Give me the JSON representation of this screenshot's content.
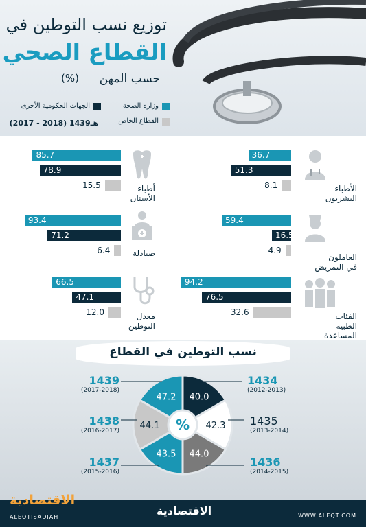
{
  "header": {
    "title_line1": "توزيع نسب التوطين في",
    "title_line2": "القطاع الصحي",
    "subtitle": "حسب المهن",
    "unit": "(%)",
    "year_range": "(2017 - 2018) 1439هـ",
    "colors": {
      "health": "#1a96b4",
      "gov": "#0c2a3b",
      "private": "#c8c8c8"
    }
  },
  "legend": {
    "health": "وزارة الصحة",
    "gov": "الجهات الحكومية الأخرى",
    "private": "القطاع الخاص"
  },
  "chart_data": [
    {
      "type": "bar",
      "orientation": "horizontal",
      "categories": [
        "الأطباء البشريون",
        "العاملون في التمريض",
        "الفئات الطبية المساعدة",
        "أطباء الأسنان",
        "صيادلة",
        "معدل التوطين"
      ],
      "series": [
        {
          "name": "وزارة الصحة",
          "values": [
            36.7,
            59.4,
            94.2,
            85.7,
            93.4,
            66.5
          ]
        },
        {
          "name": "الجهات الحكومية الأخرى",
          "values": [
            51.3,
            16.5,
            76.5,
            78.9,
            71.2,
            47.1
          ]
        },
        {
          "name": "القطاع الخاص",
          "values": [
            8.1,
            4.9,
            32.6,
            15.5,
            6.4,
            12.0
          ]
        }
      ],
      "xlim": [
        0,
        100
      ]
    },
    {
      "type": "pie",
      "title": "نسب التوطين في القطاع",
      "center_label": "%",
      "slices": [
        {
          "year": "1434",
          "gregorian": "(2012-2013)",
          "value": 40.0,
          "label": "40.0",
          "color": "#0c2a3b"
        },
        {
          "year": "1435",
          "gregorian": "(2013-2014)",
          "value": 42.3,
          "label": "42.3",
          "color": "#ffffff"
        },
        {
          "year": "1436",
          "gregorian": "(2014-2015)",
          "value": 44.0,
          "label": "44.0",
          "color": "#7a7a7a"
        },
        {
          "year": "1437",
          "gregorian": "(2015-2016)",
          "value": 43.5,
          "label": "43.5",
          "color": "#1a96b4"
        },
        {
          "year": "1438",
          "gregorian": "(2016-2017)",
          "value": 44.1,
          "label": "44.1",
          "color": "#c8c8c8"
        },
        {
          "year": "1439",
          "gregorian": "(2017-2018)",
          "value": 47.2,
          "label": "47.2",
          "color": "#1a96b4"
        }
      ]
    }
  ],
  "footer": {
    "logo": "الاقتصادية",
    "logo_sub": "ALEQTISADIAH",
    "url": "WWW.ALEQT.COM"
  }
}
